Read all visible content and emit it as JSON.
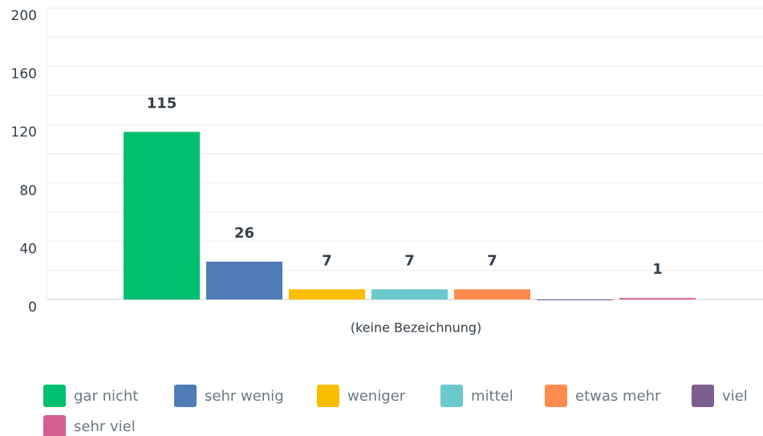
{
  "chart_data": {
    "type": "bar",
    "categories": [
      "(keine Bezeichnung)"
    ],
    "series": [
      {
        "name": "gar nicht",
        "color": "#00bf6f",
        "values": [
          115
        ]
      },
      {
        "name": "sehr wenig",
        "color": "#507cb6",
        "values": [
          26
        ]
      },
      {
        "name": "weniger",
        "color": "#f9be00",
        "values": [
          7
        ]
      },
      {
        "name": "mittel",
        "color": "#6bc8cd",
        "values": [
          7
        ]
      },
      {
        "name": "etwas mehr",
        "color": "#ff8b4f",
        "values": [
          7
        ]
      },
      {
        "name": "viel",
        "color": "#7d5e90",
        "values": [
          0
        ]
      },
      {
        "name": "sehr viel",
        "color": "#d25f90",
        "values": [
          1
        ]
      }
    ],
    "ylim": [
      0,
      200
    ],
    "yticks": [
      0,
      40,
      80,
      120,
      160,
      200
    ],
    "yminorticks": [
      20,
      60,
      100,
      140,
      180
    ],
    "grid": true,
    "legend": "bottom"
  }
}
